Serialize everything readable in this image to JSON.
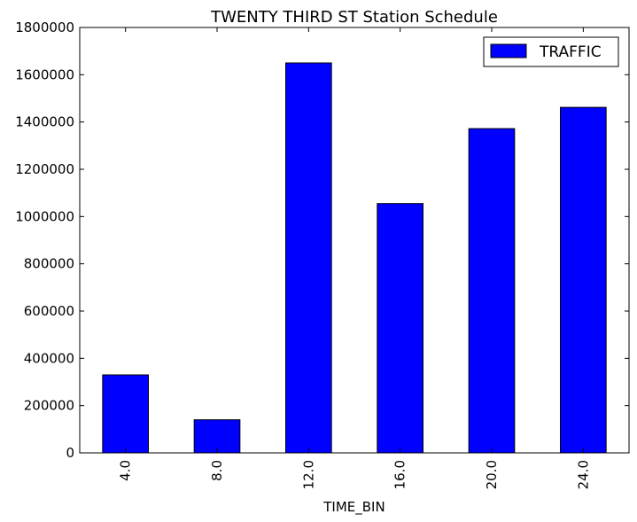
{
  "chart_data": {
    "type": "bar",
    "title": "TWENTY THIRD ST Station Schedule",
    "xlabel": "TIME_BIN",
    "ylabel": "",
    "categories": [
      "4.0",
      "8.0",
      "12.0",
      "16.0",
      "20.0",
      "24.0"
    ],
    "series": [
      {
        "name": "TRAFFIC",
        "values": [
          330000,
          140000,
          1650000,
          1055000,
          1372000,
          1462000
        ],
        "color": "#0000ff"
      }
    ],
    "ylim": [
      0,
      1800000
    ],
    "yticks": [
      "0",
      "200000",
      "400000",
      "600000",
      "800000",
      "1000000",
      "1200000",
      "1400000",
      "1600000",
      "1800000"
    ],
    "ytick_values": [
      0,
      200000,
      400000,
      600000,
      800000,
      1000000,
      1200000,
      1400000,
      1600000,
      1800000
    ],
    "grid": false,
    "legend_position": "top-right",
    "xtick_rotation": "vertical"
  }
}
